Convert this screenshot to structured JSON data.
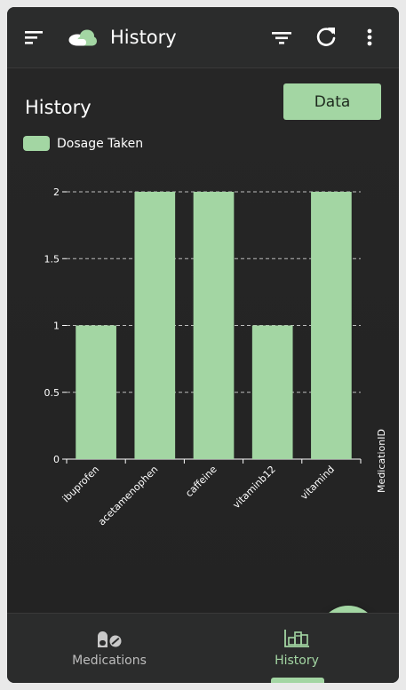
{
  "appbar": {
    "title": "History",
    "icons": [
      "menu-icon",
      "pill-logo-icon",
      "filter-icon",
      "refresh-icon",
      "more-vert-icon"
    ]
  },
  "page": {
    "title": "History",
    "data_button_label": "Data"
  },
  "legend": {
    "label": "Dosage Taken",
    "color": "#a3d6a3"
  },
  "chart_data": {
    "type": "bar",
    "categories": [
      "ibuprofen",
      "acetamenophen",
      "caffeine",
      "vitaminb12",
      "vitamind"
    ],
    "series": [
      {
        "name": "Dosage Taken",
        "values": [
          1,
          2,
          2,
          1,
          2
        ]
      }
    ],
    "ylim": [
      0,
      2
    ],
    "yticks": [
      "0",
      "0.5",
      "1",
      "1.5",
      "2"
    ],
    "xlabel": "MedicationID",
    "ylabel": "",
    "grid": true,
    "legend_position": "top-left",
    "bar_color": "#a3d6a3"
  },
  "fab": {
    "icon": "plus-icon"
  },
  "bottom_nav": {
    "items": [
      {
        "label": "Medications",
        "icon": "pill-icon",
        "active": false
      },
      {
        "label": "History",
        "icon": "history-chart-icon",
        "active": true
      }
    ]
  },
  "colors": {
    "accent": "#a3d6a3",
    "background": "#252525",
    "bar_surface": "#2b2c2c"
  }
}
